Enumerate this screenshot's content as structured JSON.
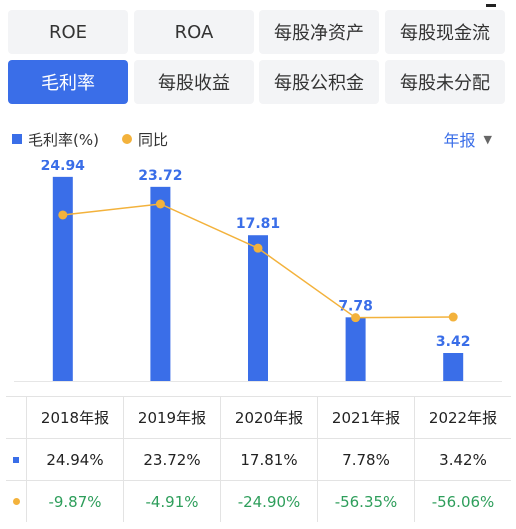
{
  "tabs": [
    {
      "label": "ROE",
      "active": false
    },
    {
      "label": "ROA",
      "active": false
    },
    {
      "label": "每股净资产",
      "active": false
    },
    {
      "label": "每股现金流",
      "active": false
    },
    {
      "label": "毛利率",
      "active": true
    },
    {
      "label": "每股收益",
      "active": false
    },
    {
      "label": "每股公积金",
      "active": false
    },
    {
      "label": "每股未分配",
      "active": false
    }
  ],
  "legend": {
    "bar_label": "毛利率(%)",
    "line_label": "同比",
    "period_selector": "年报",
    "period_caret": "▼"
  },
  "colors": {
    "bar": "#3a6ee8",
    "line": "#f3b23c",
    "negative_text": "#2e9e5b",
    "accent": "#3a6ee8"
  },
  "chart_data": {
    "type": "bar",
    "categories": [
      "2018年报",
      "2019年报",
      "2020年报",
      "2021年报",
      "2022年报"
    ],
    "series": [
      {
        "name": "毛利率(%)",
        "type": "bar",
        "values": [
          24.94,
          23.72,
          17.81,
          7.78,
          3.42
        ]
      },
      {
        "name": "同比",
        "type": "line",
        "values": [
          -9.87,
          -4.91,
          -24.9,
          -56.35,
          -56.06
        ]
      }
    ],
    "ylim": [
      0,
      27
    ],
    "y2lim": [
      -85,
      15
    ],
    "grid": false
  },
  "table": {
    "headers": [
      "2018年报",
      "2019年报",
      "2020年报",
      "2021年报",
      "2022年报"
    ],
    "rows": [
      {
        "marker": "bar",
        "values": [
          "24.94%",
          "23.72%",
          "17.81%",
          "7.78%",
          "3.42%"
        ]
      },
      {
        "marker": "line",
        "values": [
          "-9.87%",
          "-4.91%",
          "-24.90%",
          "-56.35%",
          "-56.06%"
        ]
      }
    ]
  }
}
